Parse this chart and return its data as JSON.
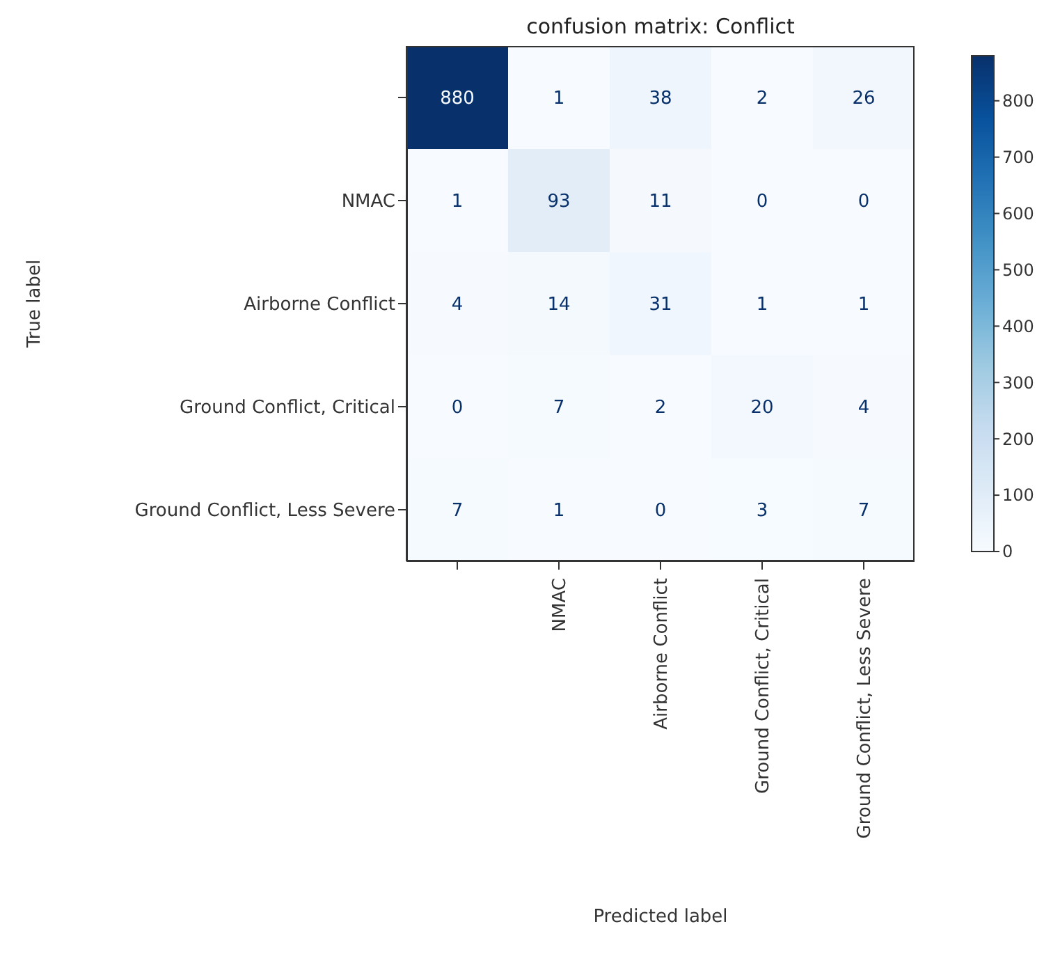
{
  "chart_data": {
    "type": "heatmap",
    "title": "confusion matrix:  Conflict",
    "xlabel": "Predicted label",
    "ylabel": "True label",
    "categories": [
      null,
      "NMAC",
      "Airborne Conflict",
      "Ground Conflict, Critical",
      "Ground Conflict, Less Severe"
    ],
    "y_categories": [
      null,
      "NMAC",
      "Airborne Conflict",
      "Ground Conflict, Critical",
      "Ground Conflict, Less Severe"
    ],
    "cells": [
      [
        880,
        1,
        38,
        2,
        26
      ],
      [
        1,
        93,
        11,
        0,
        0
      ],
      [
        4,
        14,
        31,
        1,
        1
      ],
      [
        0,
        7,
        2,
        20,
        4
      ],
      [
        7,
        1,
        0,
        3,
        7
      ]
    ],
    "clim": [
      0,
      880
    ],
    "cticks": [
      0,
      100,
      200,
      300,
      400,
      500,
      600,
      700,
      800
    ],
    "data_labels": true
  }
}
